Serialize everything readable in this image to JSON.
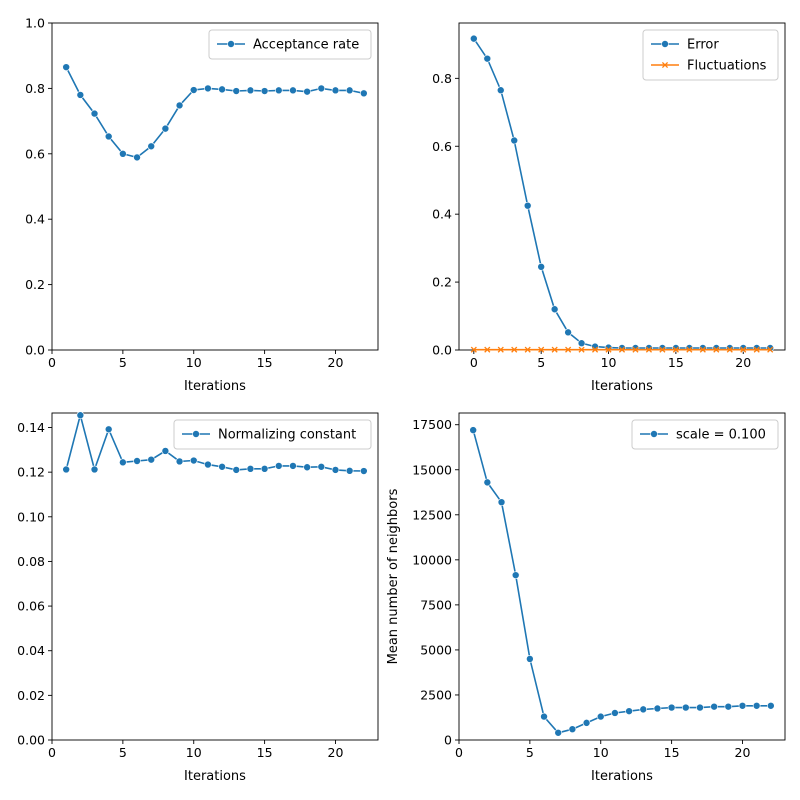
{
  "colors": {
    "blue": "#1f77b4",
    "orange": "#ff7f0e"
  },
  "chart_data": [
    {
      "type": "line",
      "xlabel": "Iterations",
      "ylabel": "",
      "xlim": [
        0,
        23
      ],
      "ylim": [
        0,
        1.0
      ],
      "xticks": [
        0,
        5,
        10,
        15,
        20
      ],
      "xtick_labels": [
        "0",
        "5",
        "10",
        "15",
        "20"
      ],
      "yticks": [
        0,
        0.2,
        0.4,
        0.6,
        0.8,
        1.0
      ],
      "ytick_labels": [
        "0.0",
        "0.2",
        "0.4",
        "0.6",
        "0.8",
        "1.0"
      ],
      "legend_position": "top-right",
      "series": [
        {
          "name": "Acceptance rate",
          "marker": "circle",
          "color": "#1f77b4",
          "x": [
            1,
            2,
            3,
            4,
            5,
            6,
            7,
            8,
            9,
            10,
            11,
            12,
            13,
            14,
            15,
            16,
            17,
            18,
            19,
            20,
            21,
            22
          ],
          "values": [
            0.865,
            0.78,
            0.723,
            0.653,
            0.6,
            0.589,
            0.623,
            0.677,
            0.748,
            0.795,
            0.8,
            0.797,
            0.792,
            0.794,
            0.792,
            0.794,
            0.794,
            0.79,
            0.8,
            0.794,
            0.794,
            0.785
          ]
        }
      ]
    },
    {
      "type": "line",
      "xlabel": "Iterations",
      "ylabel": "",
      "xlim": [
        -1.1,
        23.1
      ],
      "ylim": [
        0,
        0.963
      ],
      "xticks": [
        0,
        5,
        10,
        15,
        20
      ],
      "xtick_labels": [
        "0",
        "5",
        "10",
        "15",
        "20"
      ],
      "yticks": [
        0,
        0.2,
        0.4,
        0.6,
        0.8
      ],
      "ytick_labels": [
        "0.0",
        "0.2",
        "0.4",
        "0.6",
        "0.8"
      ],
      "legend_position": "top-right",
      "series": [
        {
          "name": "Error",
          "marker": "circle",
          "color": "#1f77b4",
          "x": [
            0,
            1,
            2,
            3,
            4,
            5,
            6,
            7,
            8,
            9,
            10,
            11,
            12,
            13,
            14,
            15,
            16,
            17,
            18,
            19,
            20,
            21,
            22
          ],
          "values": [
            0.917,
            0.858,
            0.765,
            0.617,
            0.425,
            0.245,
            0.12,
            0.052,
            0.02,
            0.01,
            0.007,
            0.006,
            0.006,
            0.006,
            0.006,
            0.006,
            0.006,
            0.006,
            0.006,
            0.006,
            0.006,
            0.006,
            0.006
          ]
        },
        {
          "name": "Fluctuations",
          "marker": "x",
          "color": "#ff7f0e",
          "x": [
            0,
            1,
            2,
            3,
            4,
            5,
            6,
            7,
            8,
            9,
            10,
            11,
            12,
            13,
            14,
            15,
            16,
            17,
            18,
            19,
            20,
            21,
            22
          ],
          "values": [
            0.001,
            0.001,
            0.001,
            0.001,
            0.001,
            0.001,
            0.001,
            0.001,
            0.001,
            0.001,
            0.001,
            0.001,
            0.001,
            0.001,
            0.001,
            0.001,
            0.001,
            0.001,
            0.001,
            0.001,
            0.001,
            0.001,
            0.001
          ]
        }
      ]
    },
    {
      "type": "line",
      "xlabel": "Iterations",
      "ylabel": "",
      "xlim": [
        0,
        23
      ],
      "ylim": [
        0,
        0.1465
      ],
      "xticks": [
        0,
        5,
        10,
        15,
        20
      ],
      "xtick_labels": [
        "0",
        "5",
        "10",
        "15",
        "20"
      ],
      "yticks": [
        0,
        0.02,
        0.04,
        0.06,
        0.08,
        0.1,
        0.12,
        0.14
      ],
      "ytick_labels": [
        "0.00",
        "0.02",
        "0.04",
        "0.06",
        "0.08",
        "0.10",
        "0.12",
        "0.14"
      ],
      "legend_position": "top-right",
      "series": [
        {
          "name": "Normalizing constant",
          "marker": "circle",
          "color": "#1f77b4",
          "x": [
            1,
            2,
            3,
            4,
            5,
            6,
            7,
            8,
            9,
            10,
            11,
            12,
            13,
            14,
            15,
            16,
            17,
            18,
            19,
            20,
            21,
            22
          ],
          "values": [
            0.1212,
            0.1455,
            0.1212,
            0.1392,
            0.1244,
            0.125,
            0.1256,
            0.1295,
            0.1248,
            0.1252,
            0.1234,
            0.1224,
            0.121,
            0.1215,
            0.1215,
            0.1228,
            0.1228,
            0.1222,
            0.1224,
            0.121,
            0.1206,
            0.1205
          ]
        }
      ]
    },
    {
      "type": "line",
      "xlabel": "Iterations",
      "ylabel": "Mean number of neighbors",
      "xlim": [
        0,
        23
      ],
      "ylim": [
        0,
        18150
      ],
      "xticks": [
        0,
        5,
        10,
        15,
        20
      ],
      "xtick_labels": [
        "0",
        "5",
        "10",
        "15",
        "20"
      ],
      "yticks": [
        0,
        2500,
        5000,
        7500,
        10000,
        12500,
        15000,
        17500
      ],
      "ytick_labels": [
        "0",
        "2500",
        "5000",
        "7500",
        "10000",
        "12500",
        "15000",
        "17500"
      ],
      "legend_position": "top-right",
      "series": [
        {
          "name": "scale = 0.100",
          "marker": "circle",
          "color": "#1f77b4",
          "x": [
            1,
            2,
            3,
            4,
            5,
            6,
            7,
            8,
            9,
            10,
            11,
            12,
            13,
            14,
            15,
            16,
            17,
            18,
            19,
            20,
            21,
            22
          ],
          "values": [
            17200,
            14300,
            13200,
            9150,
            4500,
            1300,
            400,
            600,
            950,
            1300,
            1500,
            1600,
            1700,
            1750,
            1800,
            1800,
            1800,
            1850,
            1850,
            1900,
            1900,
            1900
          ]
        }
      ]
    }
  ]
}
